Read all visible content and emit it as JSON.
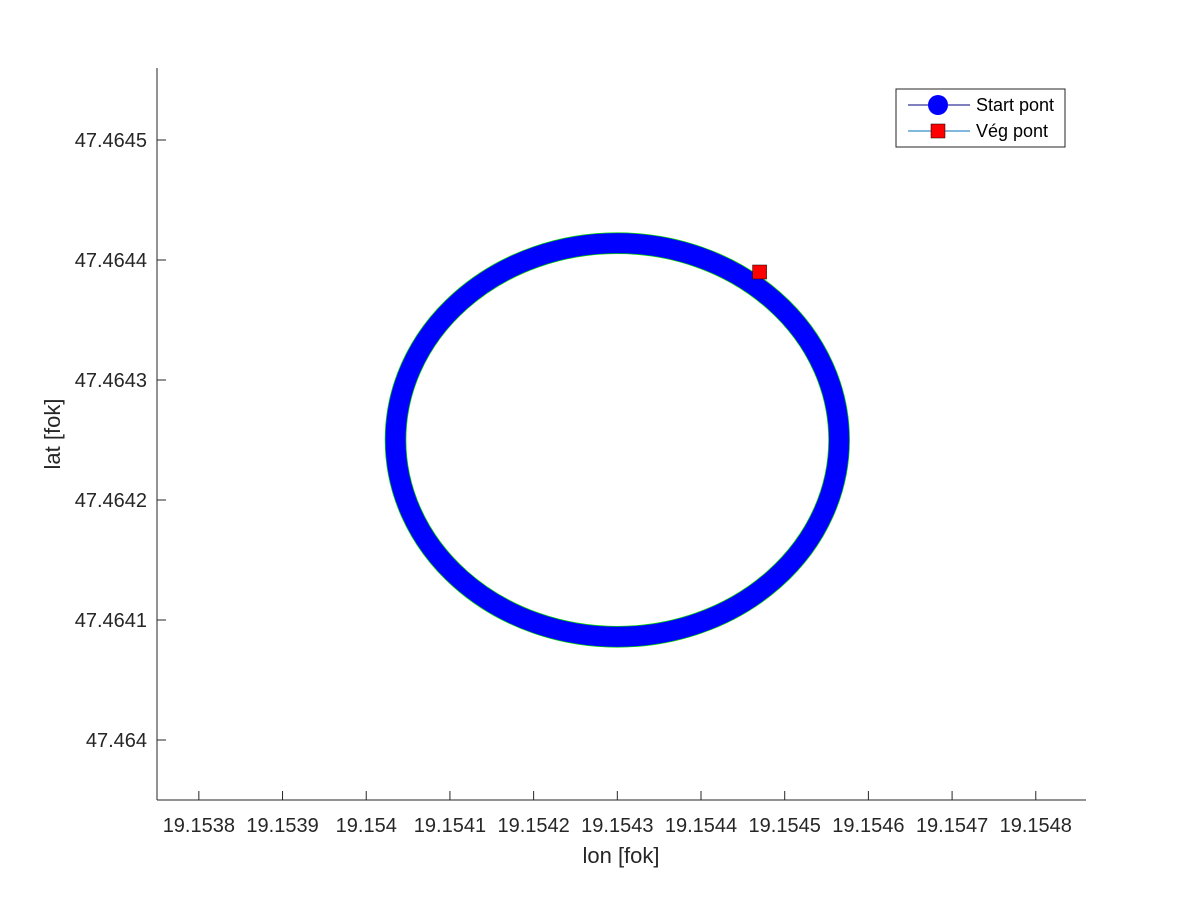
{
  "chart_data": {
    "type": "line",
    "title": "",
    "xlabel": "lon [fok]",
    "ylabel": "lat [fok]",
    "xlim": [
      19.15375,
      19.15486
    ],
    "ylim": [
      47.46395,
      47.46456
    ],
    "xticks": [
      19.1538,
      19.1539,
      19.154,
      19.1541,
      19.1542,
      19.1543,
      19.1544,
      19.1545,
      19.1546,
      19.1547,
      19.1548
    ],
    "xtick_labels": [
      "19.1538",
      "19.1539",
      "19.154",
      "19.1541",
      "19.1542",
      "19.1543",
      "19.1544",
      "19.1545",
      "19.1546",
      "19.1547",
      "19.1548"
    ],
    "yticks": [
      47.464,
      47.4641,
      47.4642,
      47.4643,
      47.4644,
      47.4645
    ],
    "ytick_labels": [
      "47.464",
      "47.4641",
      "47.4642",
      "47.4643",
      "47.4644",
      "47.4645"
    ],
    "grid": false,
    "legend_position": "top-right",
    "series": [
      {
        "kind": "path",
        "style": "ring",
        "color": "#0000ff",
        "edge_color": "#00cc00",
        "center": {
          "lon": 19.1543,
          "lat": 47.46425
        },
        "radius_lon": 0.000265,
        "radius_lat": 0.000164,
        "band_lon": 1.2e-05,
        "band_lat": 8e-06
      },
      {
        "name": "Start pont",
        "kind": "marker",
        "marker": "circle",
        "color": "#0000ff",
        "line_color": "#000080",
        "point": null
      },
      {
        "name": "Vég pont",
        "kind": "marker",
        "marker": "square",
        "color": "#ff0000",
        "line_color": "#0072bd",
        "point": {
          "lon": 19.15447,
          "lat": 47.46439
        }
      }
    ]
  }
}
